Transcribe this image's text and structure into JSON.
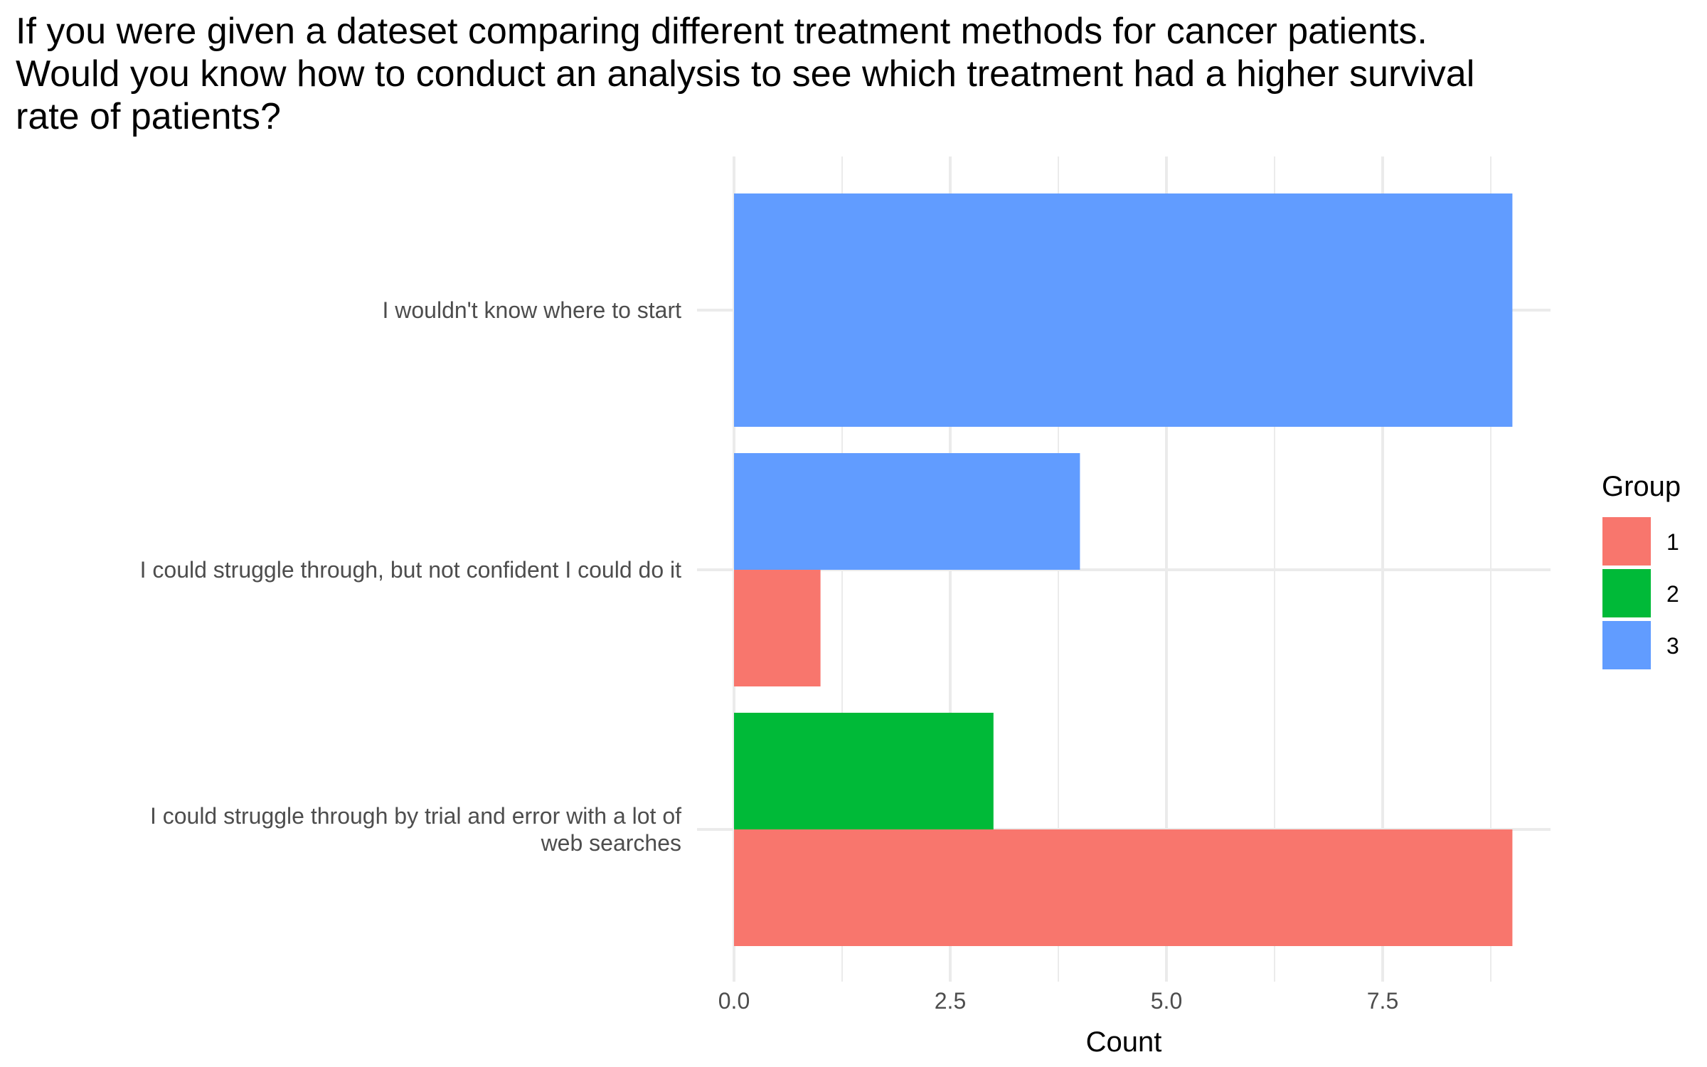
{
  "chart_data": {
    "type": "bar",
    "orientation": "horizontal",
    "title": "If you were given a dateset comparing different treatment methods for cancer patients. Would you know how to conduct an analysis to see which treatment had a higher survival rate of patients?",
    "xlabel": "Count",
    "ylabel": "",
    "xlim": [
      0,
      9.45
    ],
    "x_ticks": [
      "0.0",
      "2.5",
      "5.0",
      "7.5"
    ],
    "x_tick_values": [
      0,
      2.5,
      5,
      7.5
    ],
    "grid": true,
    "categories": [
      "I wouldn't know where to start",
      "I could struggle through, but not confident I could do it",
      "I could struggle through by trial and error with a lot of web searches"
    ],
    "category_lines": [
      [
        "I wouldn't know where to start"
      ],
      [
        "I could struggle through, but not confident I could do it"
      ],
      [
        "I could struggle through by trial and error with a lot of",
        "web searches"
      ]
    ],
    "series": [
      {
        "name": "1",
        "color": "#F8766D",
        "values": [
          0,
          1,
          9
        ]
      },
      {
        "name": "2",
        "color": "#00BA38",
        "values": [
          0,
          0,
          3
        ]
      },
      {
        "name": "3",
        "color": "#619CFF",
        "values": [
          9,
          4,
          0
        ]
      }
    ],
    "legend": {
      "title": "Group",
      "position": "right",
      "items": [
        {
          "label": "1",
          "color": "#F8766D"
        },
        {
          "label": "2",
          "color": "#00BA38"
        },
        {
          "label": "3",
          "color": "#619CFF"
        }
      ]
    }
  }
}
